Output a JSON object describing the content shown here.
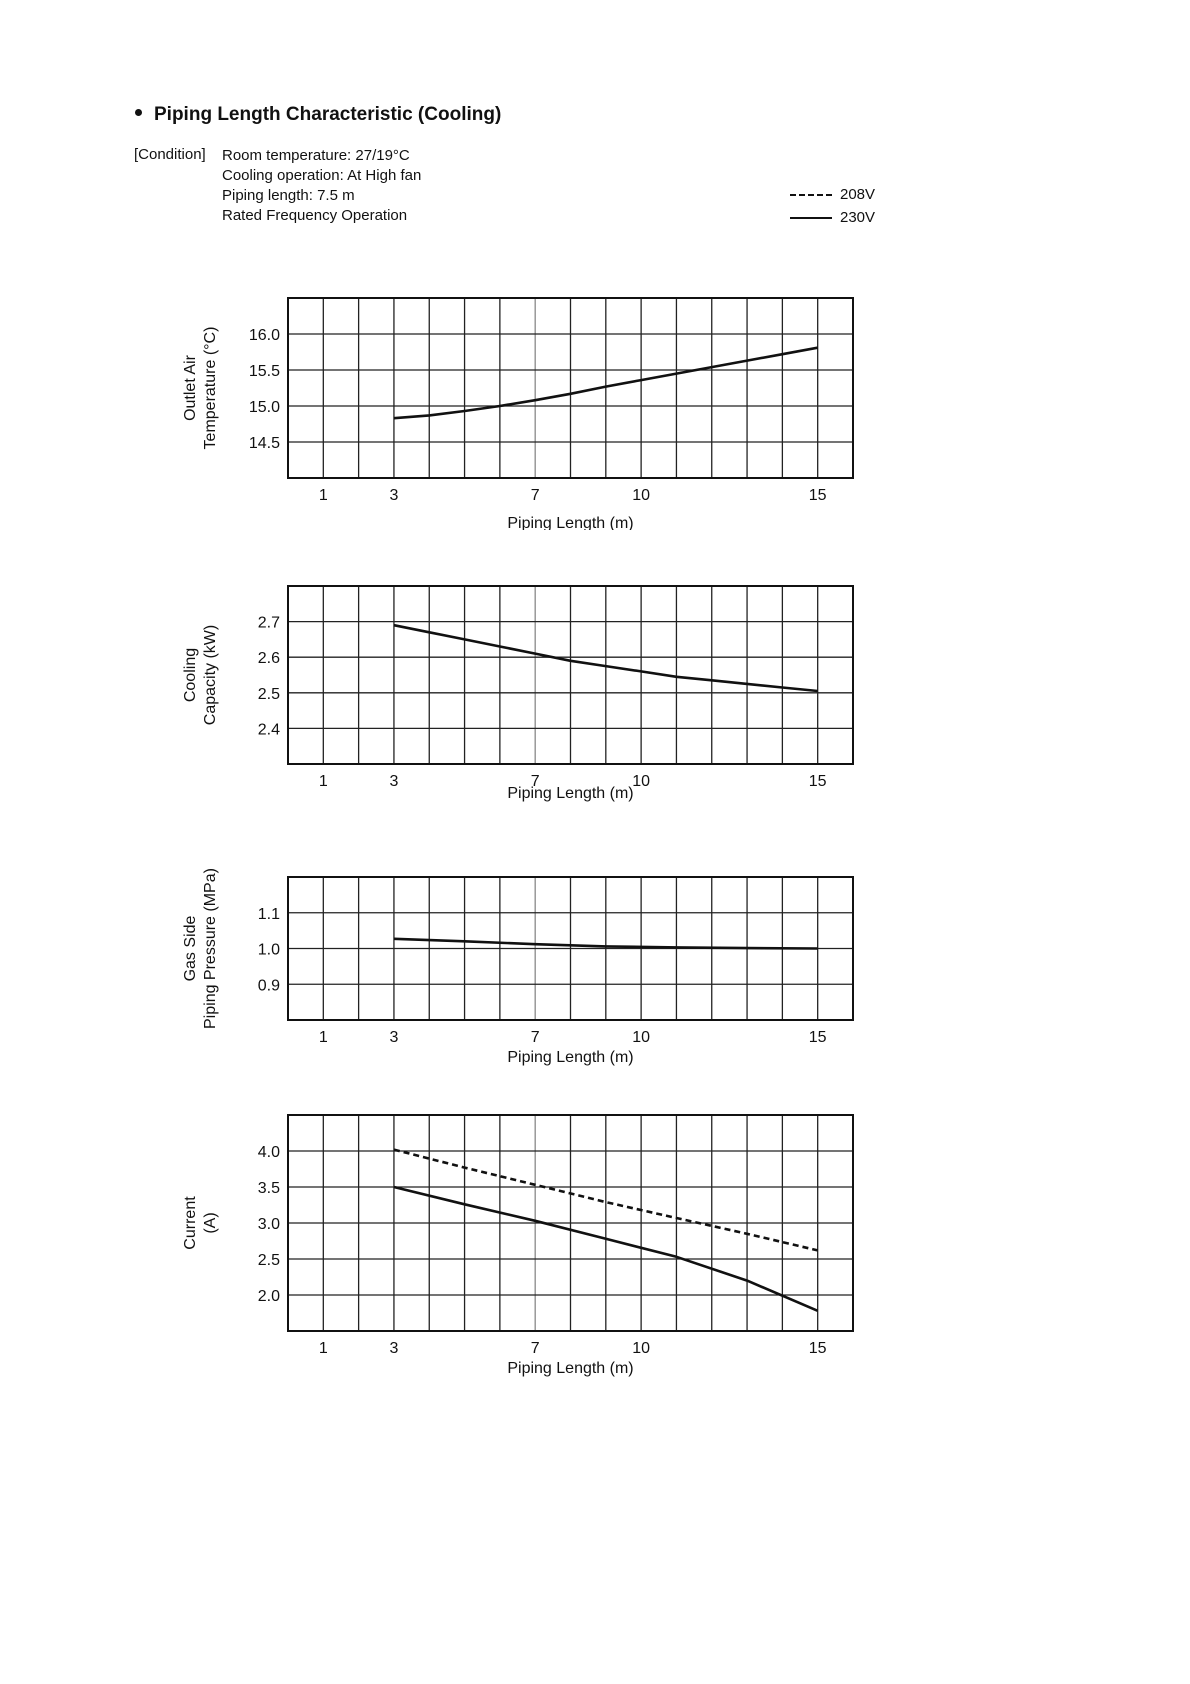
{
  "header": {
    "title": "Piping Length Characteristic (Cooling)",
    "condition_label": "[Condition]",
    "conditions": [
      "Room temperature: 27/19°C",
      "Cooling operation: At High fan",
      "Piping length:  7.5 m",
      "Rated Frequency Operation"
    ]
  },
  "legend": [
    {
      "label": "208V",
      "style": "dashed"
    },
    {
      "label": "230V",
      "style": "solid"
    }
  ],
  "chart_data": [
    {
      "type": "line",
      "ylabel": [
        "Outlet Air",
        "Temperature (°C)"
      ],
      "xlabel": "Piping Length (m)",
      "xticks": [
        1,
        3,
        7,
        10,
        15
      ],
      "yticks": [
        16.0,
        15.5,
        15.0,
        14.5
      ],
      "ytick_labels": [
        "16.0",
        "15.5",
        "15.0",
        "14.5"
      ],
      "ylim": [
        14.0,
        16.5
      ],
      "xlim": [
        0,
        16
      ],
      "grid": true,
      "series": [
        {
          "style": "solid",
          "x": [
            3,
            4,
            5,
            6,
            7,
            8,
            9,
            10,
            11,
            12,
            13,
            14,
            15
          ],
          "y": [
            14.83,
            14.87,
            14.93,
            15.0,
            15.08,
            15.17,
            15.27,
            15.36,
            15.45,
            15.54,
            15.63,
            15.72,
            15.81
          ]
        }
      ]
    },
    {
      "type": "line",
      "ylabel": [
        "Cooling",
        "Capacity (kW)"
      ],
      "xlabel": "Piping Length (m)",
      "xticks": [
        1,
        3,
        7,
        10,
        15
      ],
      "yticks": [
        2.7,
        2.6,
        2.5,
        2.4
      ],
      "ytick_labels": [
        "2.7",
        "2.6",
        "2.5",
        "2.4"
      ],
      "ylim": [
        2.3,
        2.8
      ],
      "xlim": [
        0,
        16
      ],
      "grid": true,
      "series": [
        {
          "style": "solid",
          "x": [
            3,
            4,
            5,
            6,
            7,
            8,
            9,
            10,
            11,
            12,
            13,
            14,
            15
          ],
          "y": [
            2.69,
            2.67,
            2.65,
            2.63,
            2.61,
            2.59,
            2.575,
            2.56,
            2.545,
            2.535,
            2.525,
            2.515,
            2.505
          ]
        }
      ]
    },
    {
      "type": "line",
      "ylabel": [
        "Gas Side",
        "Piping Pressure (MPa)"
      ],
      "xlabel": "Piping Length (m)",
      "xticks": [
        1,
        3,
        7,
        10,
        15
      ],
      "yticks": [
        1.1,
        1.0,
        0.9
      ],
      "ytick_labels": [
        "1.1",
        "1.0",
        "0.9"
      ],
      "ylim": [
        0.8,
        1.2
      ],
      "xlim": [
        0,
        16
      ],
      "grid": true,
      "series": [
        {
          "style": "solid",
          "x": [
            3,
            5,
            7,
            9,
            11,
            13,
            15
          ],
          "y": [
            1.027,
            1.02,
            1.012,
            1.006,
            1.003,
            1.001,
            1.0
          ]
        }
      ]
    },
    {
      "type": "line",
      "ylabel": [
        "Current",
        "(A)"
      ],
      "xlabel": "Piping Length (m)",
      "xticks": [
        1,
        3,
        7,
        10,
        15
      ],
      "yticks": [
        4.0,
        3.5,
        3.0,
        2.5,
        2.0
      ],
      "ytick_labels": [
        "4.0",
        "3.5",
        "3.0",
        "2.5",
        "2.0"
      ],
      "ylim": [
        1.5,
        4.5
      ],
      "xlim": [
        0,
        16
      ],
      "grid": true,
      "series": [
        {
          "name": "208V",
          "style": "dashed",
          "x": [
            3,
            5,
            7,
            9,
            11,
            13,
            15
          ],
          "y": [
            4.02,
            3.77,
            3.53,
            3.29,
            3.07,
            2.85,
            2.62
          ]
        },
        {
          "name": "230V",
          "style": "solid",
          "x": [
            3,
            5,
            7,
            9,
            11,
            13,
            15
          ],
          "y": [
            3.5,
            3.26,
            3.03,
            2.78,
            2.53,
            2.2,
            1.78
          ]
        }
      ]
    }
  ]
}
